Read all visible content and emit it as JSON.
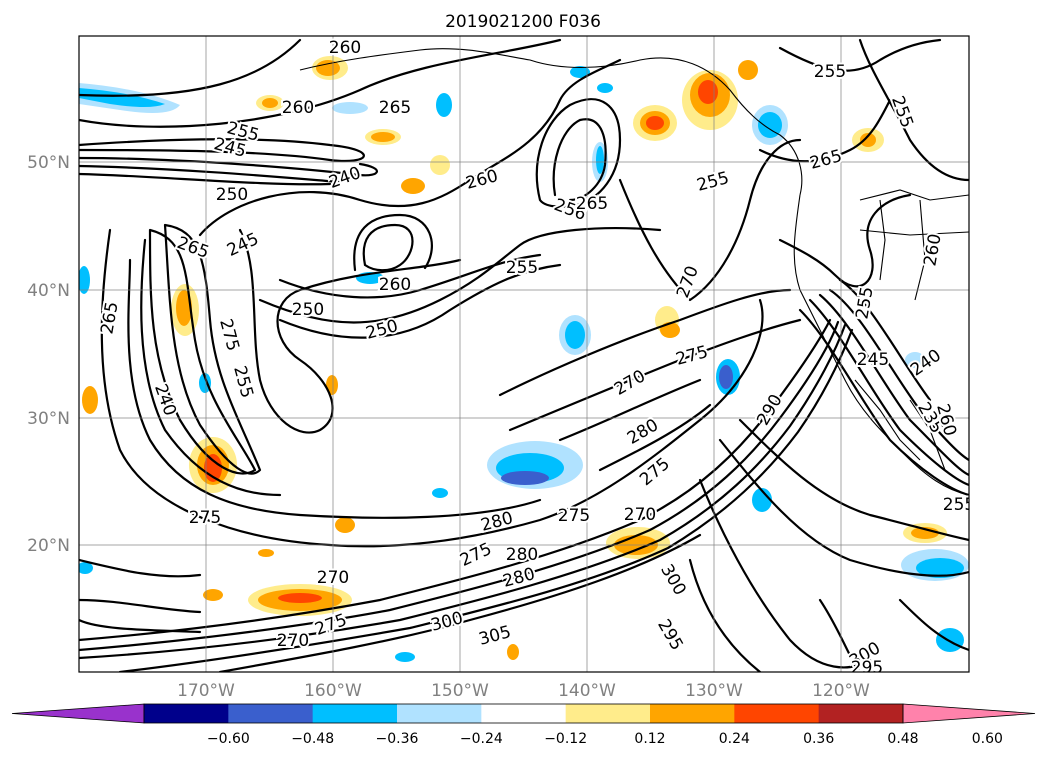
{
  "title": "2019021200 F036",
  "lon_labels": [
    "170°W",
    "160°W",
    "150°W",
    "140°W",
    "130°W",
    "120°W"
  ],
  "lat_labels": [
    "50°N",
    "40°N",
    "30°N",
    "20°N"
  ],
  "colorbar": {
    "tick_labels": [
      "−0.60",
      "−0.48",
      "−0.36",
      "−0.24",
      "−0.12",
      "0.12",
      "0.24",
      "0.36",
      "0.48",
      "0.60"
    ],
    "colors": [
      "#9932cc",
      "#00008b",
      "#3a5fcd",
      "#00bfff",
      "#b0e2ff",
      "#ffffff",
      "#ffec8b",
      "#ffa500",
      "#ff4500",
      "#b22222",
      "#ff82ab"
    ]
  },
  "contour_labels": [
    "260",
    "260",
    "265",
    "255",
    "255",
    "245",
    "240",
    "250",
    "260",
    "256",
    "265",
    "255",
    "265",
    "255",
    "265",
    "245",
    "260",
    "255",
    "270",
    "265",
    "275",
    "250",
    "275",
    "250",
    "255",
    "240",
    "270",
    "280",
    "275",
    "290",
    "275",
    "280",
    "275",
    "270",
    "280",
    "280",
    "270",
    "275",
    "275",
    "300",
    "305",
    "300",
    "295",
    "300",
    "295",
    "270",
    "255",
    "245",
    "240",
    "260",
    "255",
    "235",
    "260"
  ]
}
